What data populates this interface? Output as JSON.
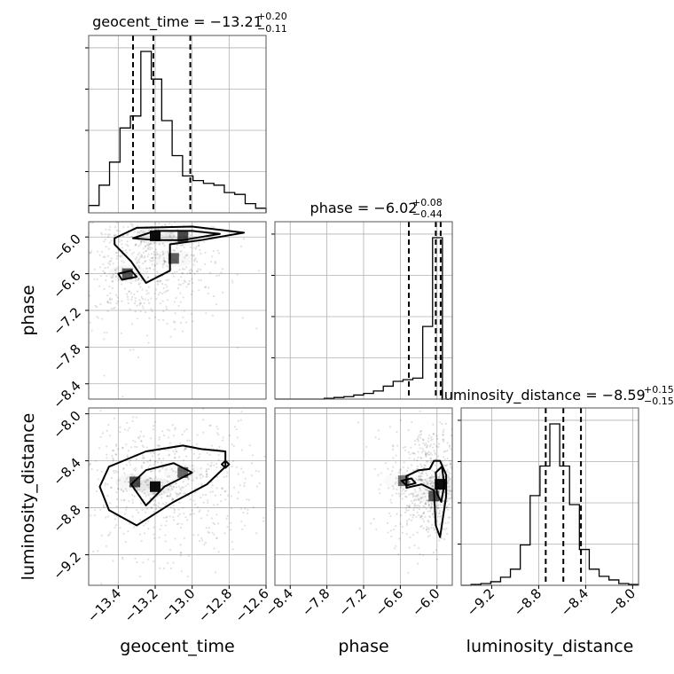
{
  "chart_data": {
    "type": "corner",
    "parameters": [
      {
        "name": "geocent_time",
        "axis_label": "geocent_time",
        "title_prefix": "geocent_time = ",
        "median_text": "−13.21",
        "plus_text": "+0.20",
        "minus_text": "−0.11",
        "range": [
          -13.56,
          -12.6
        ],
        "ticks": [
          -13.4,
          -13.2,
          -13.0,
          -12.8,
          -12.6
        ],
        "tick_labels": [
          "−13.4",
          "−13.2",
          "−13.0",
          "−12.8",
          "−12.6"
        ],
        "quantiles": [
          -13.32,
          -13.21,
          -13.01
        ],
        "hist_edges_range": [
          -13.56,
          -12.6
        ],
        "hist_counts": [
          8,
          30,
          55,
          92,
          105,
          175,
          145,
          100,
          62,
          40,
          35,
          32,
          30,
          22,
          20,
          10,
          5
        ]
      },
      {
        "name": "phase",
        "axis_label": "phase",
        "title_prefix": "phase = ",
        "median_text": "−6.02",
        "plus_text": "+0.08",
        "minus_text": "−0.44",
        "range": [
          -8.65,
          -5.75
        ],
        "ticks": [
          -8.4,
          -7.8,
          -7.2,
          -6.6,
          -6.0
        ],
        "tick_labels": [
          "−8.4",
          "−7.8",
          "−7.2",
          "−6.6",
          "−6.0"
        ],
        "quantiles": [
          -6.46,
          -6.02,
          -5.94
        ],
        "hist_edges_range": [
          -8.65,
          -5.75
        ],
        "hist_counts": [
          0,
          0,
          0,
          0,
          0,
          1,
          2,
          3,
          5,
          7,
          10,
          16,
          22,
          24,
          26,
          90,
          200,
          0
        ]
      },
      {
        "name": "luminosity_distance",
        "axis_label": "luminosity_distance",
        "title_prefix": "luminosity_distance = ",
        "median_text": "−8.59",
        "plus_text": "+0.15",
        "minus_text": "−0.15",
        "range": [
          -9.46,
          -7.95
        ],
        "ticks": [
          -9.2,
          -8.8,
          -8.4,
          -8.0
        ],
        "tick_labels": [
          "−9.2",
          "−8.8",
          "−8.4",
          "−8.0"
        ],
        "quantiles": [
          -8.74,
          -8.59,
          -8.44
        ],
        "hist_edges_range": [
          -9.46,
          -7.95
        ],
        "hist_counts": [
          0,
          1,
          2,
          4,
          9,
          18,
          45,
          100,
          133,
          180,
          133,
          90,
          40,
          18,
          10,
          6,
          2,
          1
        ]
      }
    ],
    "pairs": [
      {
        "x_param": 0,
        "y_param": 1,
        "density_peaks": [
          {
            "x": -13.2,
            "y": -5.98,
            "weight": 1.0
          },
          {
            "x": -13.35,
            "y": -6.6,
            "weight": 0.5
          },
          {
            "x": -13.1,
            "y": -6.35,
            "weight": 0.45
          },
          {
            "x": -13.05,
            "y": -6.0,
            "weight": 0.6
          }
        ],
        "contours": [
          [
            [
              -13.42,
              -6.02
            ],
            [
              -13.3,
              -5.85
            ],
            [
              -13.0,
              -5.83
            ],
            [
              -12.72,
              -5.93
            ],
            [
              -12.95,
              -6.05
            ],
            [
              -13.12,
              -6.12
            ],
            [
              -13.12,
              -6.55
            ],
            [
              -13.25,
              -6.75
            ],
            [
              -13.33,
              -6.4
            ],
            [
              -13.42,
              -6.12
            ]
          ],
          [
            [
              -13.32,
              -6.02
            ],
            [
              -13.2,
              -5.9
            ],
            [
              -13.0,
              -5.9
            ],
            [
              -12.85,
              -5.95
            ],
            [
              -13.05,
              -6.05
            ],
            [
              -13.2,
              -6.05
            ]
          ],
          [
            [
              -13.4,
              -6.6
            ],
            [
              -13.33,
              -6.55
            ],
            [
              -13.3,
              -6.65
            ],
            [
              -13.38,
              -6.7
            ]
          ]
        ],
        "scatter_center": [
          -13.25,
          -6.4
        ],
        "scatter_spread": [
          0.22,
          0.55
        ]
      },
      {
        "x_param": 0,
        "y_param": 2,
        "density_peaks": [
          {
            "x": -13.2,
            "y": -8.62,
            "weight": 1.0
          },
          {
            "x": -13.31,
            "y": -8.58,
            "weight": 0.6
          },
          {
            "x": -13.05,
            "y": -8.5,
            "weight": 0.4
          }
        ],
        "contours": [
          [
            [
              -13.5,
              -8.62
            ],
            [
              -13.45,
              -8.45
            ],
            [
              -13.25,
              -8.32
            ],
            [
              -13.05,
              -8.27
            ],
            [
              -12.95,
              -8.3
            ],
            [
              -12.82,
              -8.32
            ],
            [
              -12.82,
              -8.45
            ],
            [
              -12.92,
              -8.6
            ],
            [
              -13.1,
              -8.75
            ],
            [
              -13.3,
              -8.95
            ],
            [
              -13.45,
              -8.82
            ]
          ],
          [
            [
              -13.33,
              -8.6
            ],
            [
              -13.25,
              -8.48
            ],
            [
              -13.1,
              -8.42
            ],
            [
              -13.0,
              -8.5
            ],
            [
              -13.15,
              -8.62
            ],
            [
              -13.25,
              -8.78
            ]
          ],
          [
            [
              -12.84,
              -8.43
            ],
            [
              -12.82,
              -8.4
            ],
            [
              -12.8,
              -8.43
            ],
            [
              -12.82,
              -8.46
            ]
          ]
        ],
        "scatter_center": [
          -13.15,
          -8.6
        ],
        "scatter_spread": [
          0.25,
          0.3
        ]
      },
      {
        "x_param": 1,
        "y_param": 2,
        "density_peaks": [
          {
            "x": -5.95,
            "y": -8.6,
            "weight": 1.0
          },
          {
            "x": -6.05,
            "y": -8.7,
            "weight": 0.5
          },
          {
            "x": -6.55,
            "y": -8.57,
            "weight": 0.3
          }
        ],
        "contours": [
          [
            [
              -6.5,
              -8.53
            ],
            [
              -6.3,
              -8.48
            ],
            [
              -6.12,
              -8.47
            ],
            [
              -6.05,
              -8.4
            ],
            [
              -5.95,
              -8.4
            ],
            [
              -5.85,
              -8.52
            ],
            [
              -5.85,
              -8.7
            ],
            [
              -5.95,
              -9.05
            ],
            [
              -6.02,
              -8.95
            ],
            [
              -6.05,
              -8.65
            ],
            [
              -6.25,
              -8.6
            ],
            [
              -6.5,
              -8.63
            ]
          ],
          [
            [
              -6.02,
              -8.5
            ],
            [
              -5.92,
              -8.45
            ],
            [
              -5.88,
              -8.6
            ],
            [
              -5.93,
              -8.75
            ],
            [
              -6.0,
              -8.68
            ]
          ],
          [
            [
              -6.58,
              -8.57
            ],
            [
              -6.42,
              -8.55
            ],
            [
              -6.35,
              -8.59
            ],
            [
              -6.5,
              -8.61
            ]
          ]
        ],
        "scatter_center": [
          -6.1,
          -8.6
        ],
        "scatter_spread": [
          0.35,
          0.25
        ]
      }
    ],
    "grid": true,
    "color": "#000000"
  }
}
